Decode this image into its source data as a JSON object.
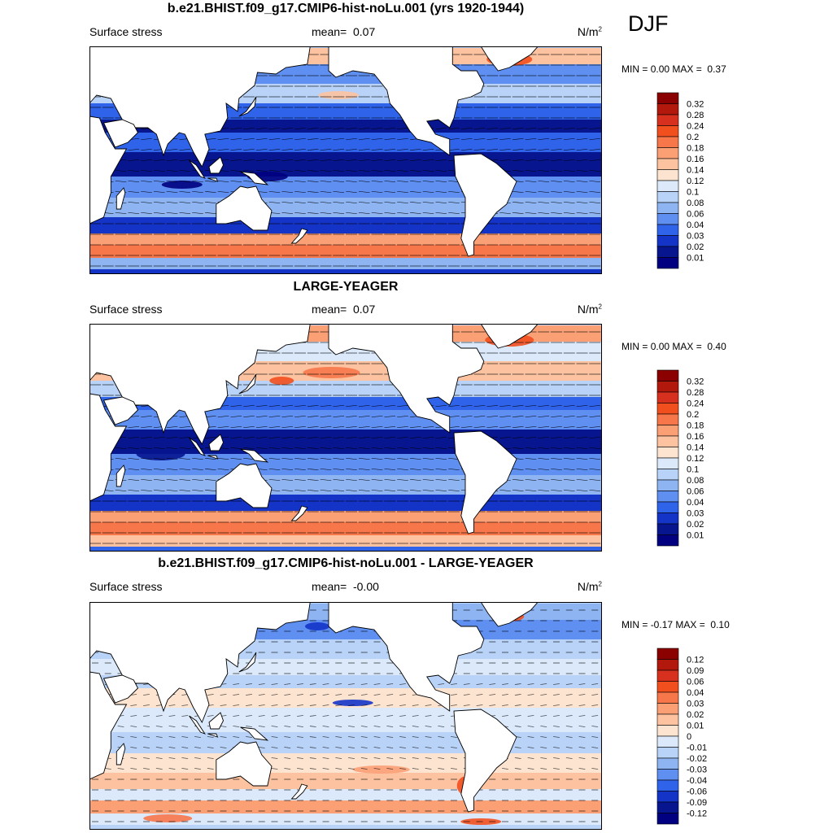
{
  "season": "DJF",
  "panels": [
    {
      "title": "b.e21.BHIST.f09_g17.CMIP6-hist-noLu.001 (yrs 1920-1944)",
      "left_label": "Surface stress",
      "mean_label": "mean=",
      "mean_value": "0.07",
      "units": "N/m",
      "units_sup": "2",
      "min_label": "MIN =",
      "min_value": "0.00",
      "max_label": "MAX =",
      "max_value": "0.37"
    },
    {
      "title": "LARGE-YEAGER",
      "left_label": "Surface stress",
      "mean_label": "mean=",
      "mean_value": "0.07",
      "units": "N/m",
      "units_sup": "2",
      "min_label": "MIN =",
      "min_value": "0.00",
      "max_label": "MAX =",
      "max_value": "0.40"
    },
    {
      "title": "b.e21.BHIST.f09_g17.CMIP6-hist-noLu.001 - LARGE-YEAGER",
      "left_label": "Surface stress",
      "mean_label": "mean=",
      "mean_value": "-0.00",
      "units": "N/m",
      "units_sup": "2",
      "min_label": "MIN =",
      "min_value": "-0.17",
      "max_label": "MAX =",
      "max_value": "0.10"
    }
  ],
  "chart_data": [
    {
      "type": "heatmap",
      "title": "b.e21.BHIST.f09_g17.CMIP6-hist-noLu.001 (yrs 1920-1944)",
      "variable": "Surface stress",
      "units": "N/m2",
      "mean": 0.07,
      "min": 0.0,
      "max": 0.37,
      "colorbar_labels": [
        "0.32",
        "0.28",
        "0.24",
        "0.2",
        "0.18",
        "0.16",
        "0.14",
        "0.12",
        "0.1",
        "0.08",
        "0.06",
        "0.04",
        "0.03",
        "0.02",
        "0.01"
      ],
      "colors": [
        "#8b0000",
        "#b2180b",
        "#d7301f",
        "#f24f1f",
        "#f7774b",
        "#fb9f75",
        "#fdc3a0",
        "#fde4d0",
        "#dbe9fb",
        "#b8d3f7",
        "#8fb4f2",
        "#5f8ff0",
        "#2f63ea",
        "#1434c8",
        "#07158f",
        "#000080"
      ]
    },
    {
      "type": "heatmap",
      "title": "LARGE-YEAGER",
      "variable": "Surface stress",
      "units": "N/m2",
      "mean": 0.07,
      "min": 0.0,
      "max": 0.4,
      "colorbar_labels": [
        "0.32",
        "0.28",
        "0.24",
        "0.2",
        "0.18",
        "0.16",
        "0.14",
        "0.12",
        "0.1",
        "0.08",
        "0.06",
        "0.04",
        "0.03",
        "0.02",
        "0.01"
      ],
      "colors": [
        "#8b0000",
        "#b2180b",
        "#d7301f",
        "#f24f1f",
        "#f7774b",
        "#fb9f75",
        "#fdc3a0",
        "#fde4d0",
        "#dbe9fb",
        "#b8d3f7",
        "#8fb4f2",
        "#5f8ff0",
        "#2f63ea",
        "#1434c8",
        "#07158f",
        "#000080"
      ]
    },
    {
      "type": "heatmap",
      "title": "b.e21.BHIST.f09_g17.CMIP6-hist-noLu.001 - LARGE-YEAGER",
      "variable": "Surface stress",
      "units": "N/m2",
      "mean": -0.0,
      "min": -0.17,
      "max": 0.1,
      "colorbar_labels": [
        "0.12",
        "0.09",
        "0.06",
        "0.04",
        "0.03",
        "0.02",
        "0.01",
        "0",
        "-0.01",
        "-0.02",
        "-0.03",
        "-0.04",
        "-0.06",
        "-0.09",
        "-0.12"
      ],
      "colors": [
        "#8b0000",
        "#b2180b",
        "#d7301f",
        "#f24f1f",
        "#f7774b",
        "#fb9f75",
        "#fdc3a0",
        "#fde4d0",
        "#dbe9fb",
        "#b8d3f7",
        "#8fb4f2",
        "#5f8ff0",
        "#2f63ea",
        "#1434c8",
        "#07158f",
        "#000080"
      ]
    }
  ]
}
